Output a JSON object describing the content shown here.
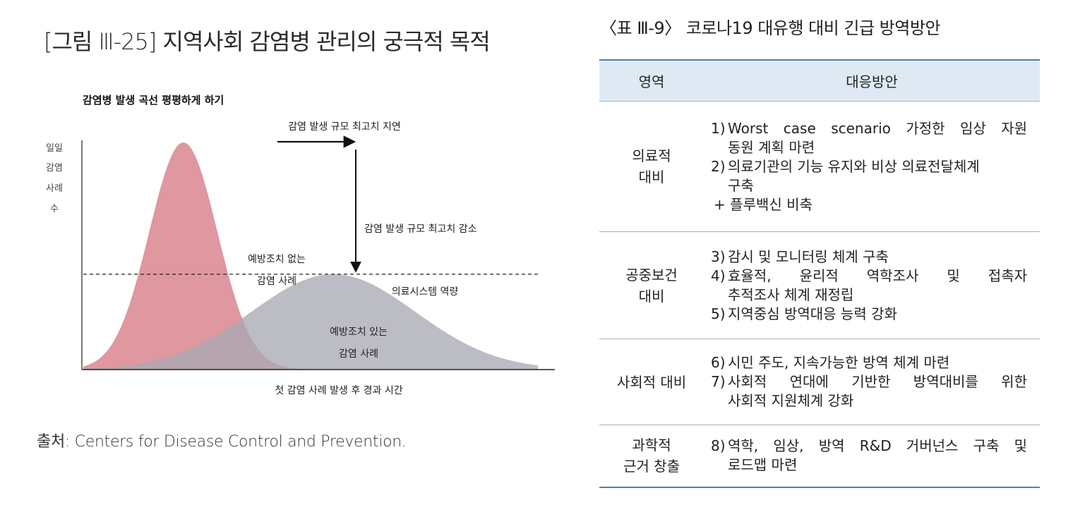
{
  "figure": {
    "title": "[그림 Ⅲ-25] 지역사회 감염병 관리의 궁극적 목적",
    "chart_title": "감염병 발생 곡선 평평하게 하기",
    "source": "출처: Centers for Disease Control and Prevention."
  },
  "chart_data": {
    "type": "area",
    "title": "감염병 발생 곡선 평평하게 하기",
    "ylabel_lines": [
      "일일",
      "감염",
      "사례",
      "수"
    ],
    "xlabel": "첫 감염 사례 발생 후 경과 시간",
    "series": [
      {
        "name": "예방조치 없는 감염 사례",
        "color": "#d9858f",
        "peak_time": 0.22,
        "peak_height": 1.0,
        "spread": 0.075
      },
      {
        "name": "예방조치 있는 감염 사례",
        "color": "#a9a9b3",
        "peak_time": 0.55,
        "peak_height": 0.42,
        "spread": 0.18
      }
    ],
    "series_labels": [
      [
        "예방조치 없는",
        "감염 사례"
      ],
      [
        "예방조치 있는",
        "감염 사례"
      ]
    ],
    "capacity_line": {
      "label": "의료시스템 역량",
      "level": 0.42
    },
    "annotations": {
      "peak_delay": "감염 발생 규모 최고치 지연",
      "peak_reduction": "감염 발생 규모 최고치 감소"
    }
  },
  "table": {
    "caption": "〈표 Ⅲ-9〉 코로나19 대유행 대비 긴급 방역방안",
    "headers": [
      "영역",
      "대응방안"
    ],
    "rows": [
      {
        "area": [
          "의료적",
          "대비"
        ],
        "items": [
          {
            "num": "1)",
            "lines": [
              "Worst case scenario 가정한 임상 자원",
              "동원 계획 마련"
            ]
          },
          {
            "num": "2)",
            "lines": [
              "의료기관의 기능 유지와 비상 의료전달체계",
              "구축"
            ]
          },
          {
            "num": "",
            "lines": [
              "+ 플루백신 비축"
            ]
          }
        ]
      },
      {
        "area": [
          "공중보건",
          "대비"
        ],
        "items": [
          {
            "num": "3)",
            "lines": [
              "감시 및 모니터링 체계 구축"
            ]
          },
          {
            "num": "4)",
            "lines": [
              "효율적, 윤리적 역학조사 및 접촉자",
              "추적조사 체계 재정립"
            ]
          },
          {
            "num": "5)",
            "lines": [
              "지역중심 방역대응 능력 강화"
            ]
          }
        ]
      },
      {
        "area": [
          "사회적 대비"
        ],
        "items": [
          {
            "num": "6)",
            "lines": [
              "시민 주도, 지속가능한 방역 체계 마련"
            ]
          },
          {
            "num": "7)",
            "lines": [
              "사회적 연대에 기반한 방역대비를 위한",
              "사회적 지원체계 강화"
            ]
          }
        ]
      },
      {
        "area": [
          "과학적",
          "근거 창출"
        ],
        "items": [
          {
            "num": "8)",
            "lines": [
              "역학, 임상, 방역 R&D 거버넌스 구축 및",
              "로드맵 마련"
            ]
          }
        ]
      }
    ]
  }
}
